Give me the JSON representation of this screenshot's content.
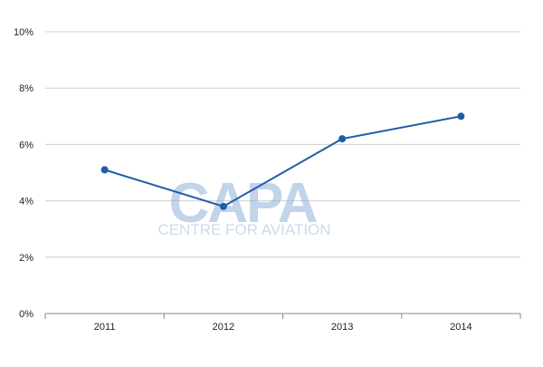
{
  "chart_data": {
    "type": "line",
    "categories": [
      "2011",
      "2012",
      "2013",
      "2014"
    ],
    "series": [
      {
        "values": [
          5.1,
          3.8,
          6.2,
          7.0
        ],
        "color": "#1f5da8"
      }
    ],
    "ylim": [
      0,
      10
    ],
    "yticks": [
      0,
      2,
      4,
      6,
      8,
      10
    ],
    "ytick_labels": [
      "0%",
      "2%",
      "4%",
      "6%",
      "8%",
      "10%"
    ],
    "title": "",
    "xlabel": "",
    "ylabel": "",
    "grid": true,
    "legend": "none"
  },
  "watermark": {
    "brand": "CAPA",
    "tagline": "CENTRE FOR AVIATION",
    "color": "#8fb1d8"
  },
  "colors": {
    "gridline": "#cfcfcf",
    "axis": "#888888",
    "text": "#222222"
  }
}
